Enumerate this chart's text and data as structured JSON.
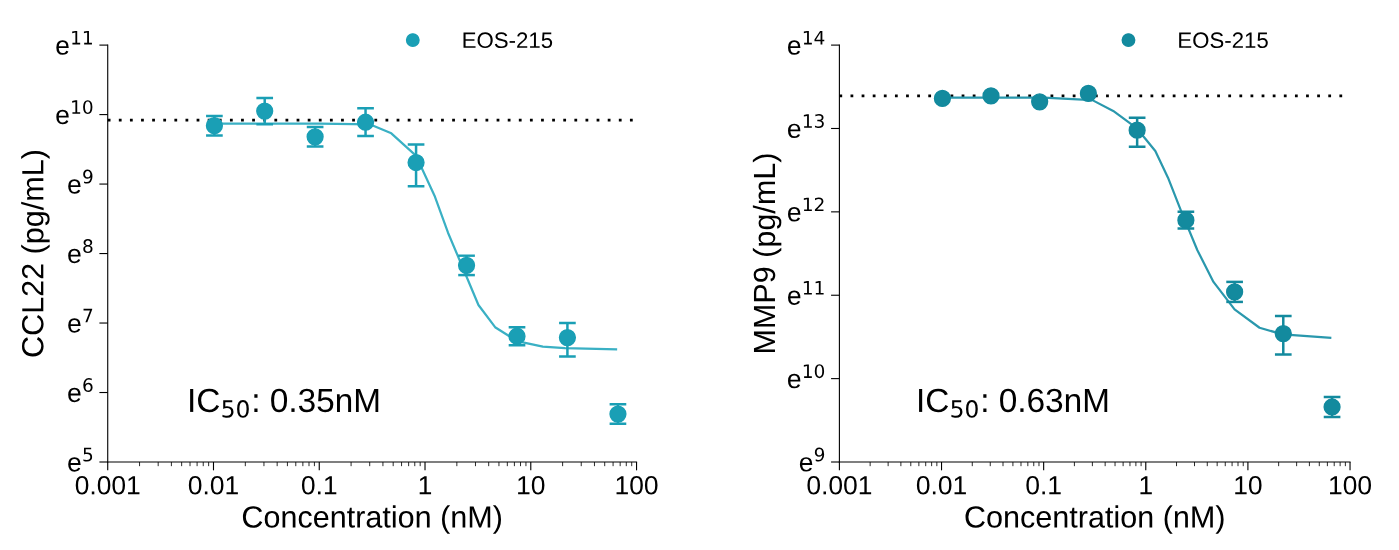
{
  "chart_data": [
    {
      "type": "scatter",
      "xlabel": "Concentration (nM)",
      "ylabel": "CCL22 (pg/mL)",
      "log": "x",
      "xlim": [
        0.001,
        100
      ],
      "xticks": [
        0.001,
        0.01,
        0.1,
        1,
        10,
        100
      ],
      "ylim": [
        5,
        11
      ],
      "yticks": [
        {
          "value": 5,
          "label": "e$^{5}$"
        },
        {
          "value": 6,
          "label": "e$^{6}$"
        },
        {
          "value": 7,
          "label": "e$^{7}$"
        },
        {
          "value": 8,
          "label": "e$^{8}$"
        },
        {
          "value": 9,
          "label": "e$^{9}$"
        },
        {
          "value": 10,
          "label": "e$^{10}$"
        },
        {
          "value": 11,
          "label": "e$^{11}$"
        }
      ],
      "legend": "top right",
      "marker": "circle",
      "grid": false,
      "series": [
        {
          "type": "line",
          "color": "#3ab0c4",
          "line_style": "solid",
          "marker": "none",
          "x": [
            0.0102,
            0.1,
            0.3,
            0.48,
            0.82,
            1.24,
            1.65,
            2.2,
            3.2,
            4.6,
            7.4,
            13,
            21,
            64
          ],
          "values": [
            9.87,
            9.87,
            9.86,
            9.73,
            9.41,
            8.82,
            8.3,
            7.85,
            7.26,
            6.94,
            6.74,
            6.66,
            6.64,
            6.62
          ]
        },
        {
          "name": "EOS-215",
          "color": "#1a9fb5",
          "x": [
            0.0102,
            0.0305,
            0.0914,
            0.274,
            0.823,
            2.47,
            7.41,
            22.2,
            66.7
          ],
          "values": [
            9.84,
            10.05,
            9.68,
            9.89,
            9.31,
            7.83,
            6.81,
            6.79,
            5.69
          ],
          "errors": [
            0.14,
            0.19,
            0.14,
            0.2,
            [
              8.97,
              9.57
            ],
            0.14,
            0.13,
            [
              6.52,
              7.0
            ],
            0.14
          ]
        }
      ],
      "ref_lines": [
        {
          "axis": "y",
          "value": 9.92,
          "color": "#000000",
          "line_style": "dotted"
        }
      ],
      "annotations": [
        "IC$_{50}$: 0.35nM"
      ]
    },
    {
      "type": "scatter",
      "xlabel": "Concentration (nM)",
      "ylabel": "MMP9 (pg/mL)",
      "log": "x",
      "xlim": [
        0.001,
        100
      ],
      "xticks": [
        0.001,
        0.01,
        0.1,
        1,
        10,
        100
      ],
      "ylim": [
        9,
        14
      ],
      "yticks": [
        {
          "value": 9,
          "label": "e$^{9}$"
        },
        {
          "value": 10,
          "label": "e$^{10}$"
        },
        {
          "value": 11,
          "label": "e$^{11}$"
        },
        {
          "value": 12,
          "label": "e$^{12}$"
        },
        {
          "value": 13,
          "label": "e$^{13}$"
        },
        {
          "value": 14,
          "label": "e$^{14}$"
        }
      ],
      "legend": "top right",
      "marker": "circle",
      "grid": false,
      "series": [
        {
          "type": "line",
          "color": "#2a98ad",
          "line_style": "solid",
          "marker": "none",
          "x": [
            0.0102,
            0.1,
            0.3,
            0.48,
            0.82,
            1.24,
            1.65,
            2.2,
            3.2,
            4.6,
            7.4,
            13,
            22,
            64
          ],
          "values": [
            13.37,
            13.37,
            13.34,
            13.21,
            13.0,
            12.73,
            12.41,
            12.02,
            11.54,
            11.16,
            10.83,
            10.61,
            10.53,
            10.49
          ]
        },
        {
          "name": "EOS-215",
          "color": "#138a9e",
          "x": [
            0.0102,
            0.0305,
            0.0914,
            0.274,
            0.823,
            2.47,
            7.41,
            22.2,
            66.7
          ],
          "values": [
            13.36,
            13.39,
            13.32,
            13.42,
            12.98,
            11.9,
            11.04,
            10.54,
            9.66
          ],
          "errors": [
            null,
            null,
            null,
            null,
            [
              12.78,
              13.13
            ],
            0.1,
            0.12,
            [
              10.29,
              10.75
            ],
            0.12
          ]
        }
      ],
      "ref_lines": [
        {
          "axis": "y",
          "value": 13.39,
          "color": "#000000",
          "line_style": "dotted"
        }
      ],
      "annotations": [
        "IC$_{50}$: 0.63nM"
      ]
    }
  ]
}
